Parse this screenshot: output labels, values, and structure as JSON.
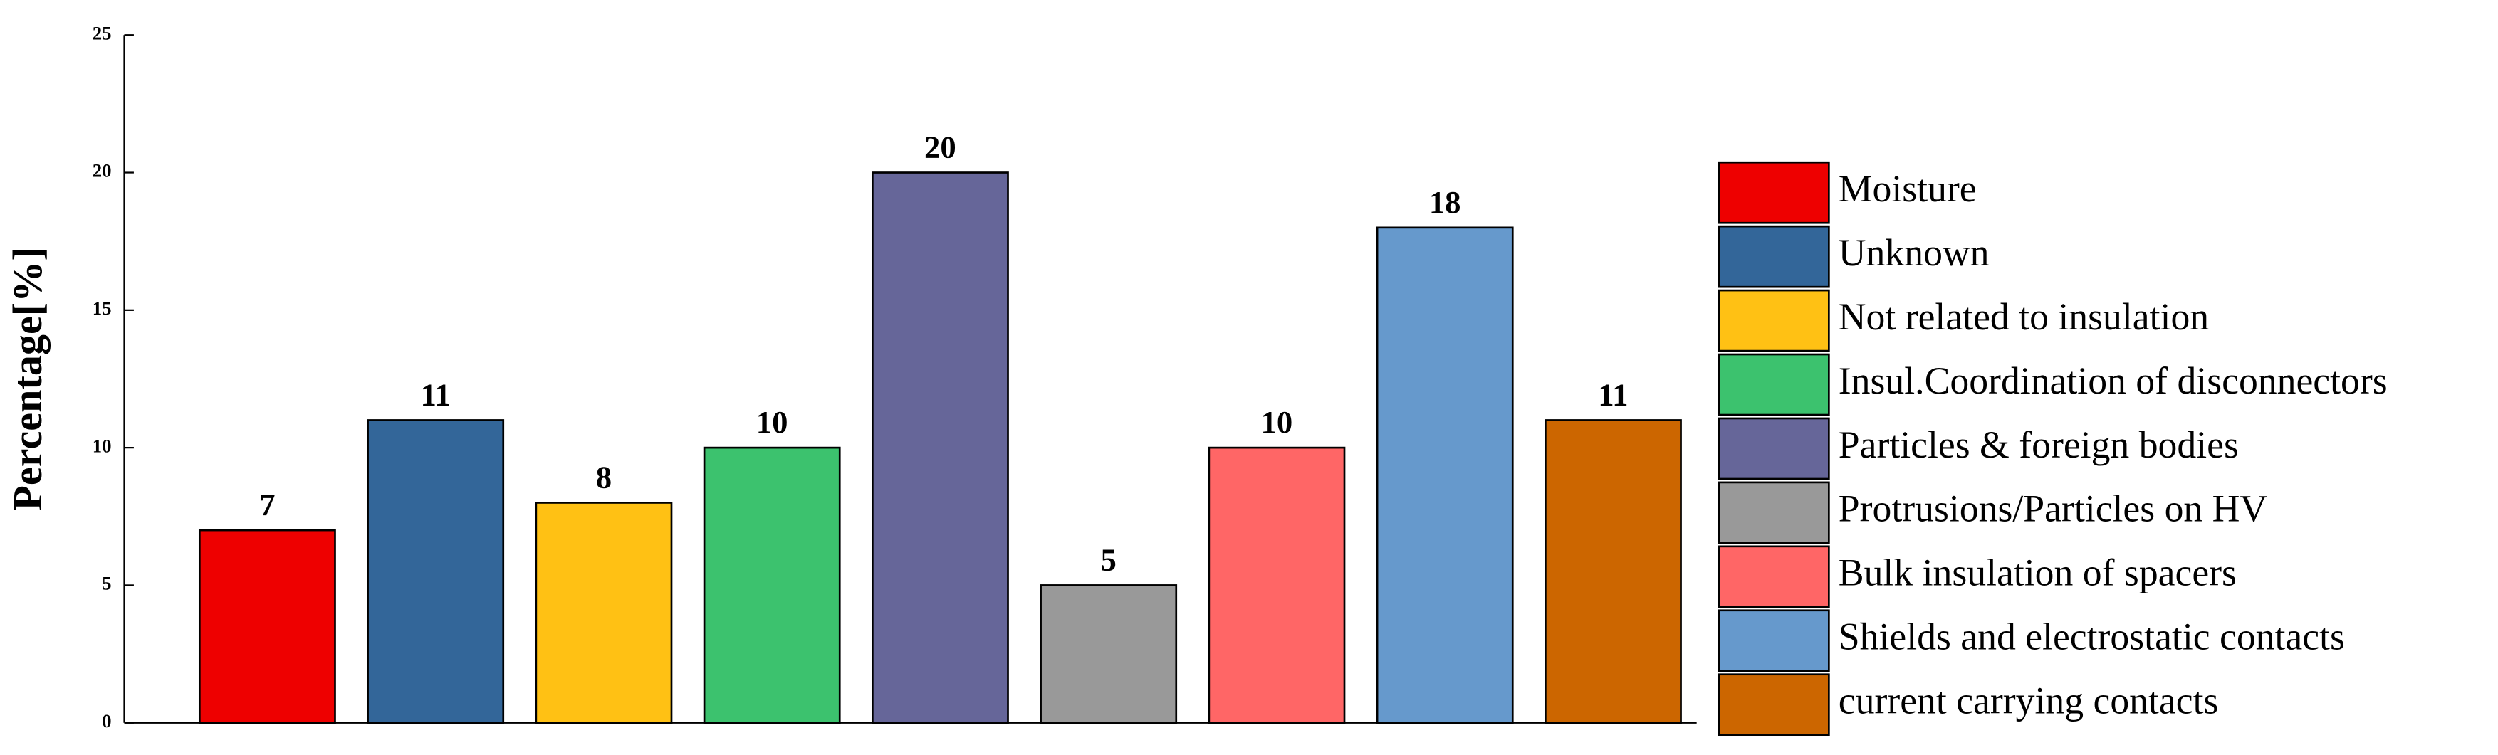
{
  "chart_data": {
    "type": "bar",
    "y_label": "Percentage[%]",
    "categories": [
      "Moisture",
      "Unknown",
      "Not related to insulation",
      "Insul.Coordination of disconnectors",
      "Particles & foreign bodies",
      "Protrusions/Particles on HV",
      "Bulk insulation of spacers",
      "Shields and electrostatic contacts",
      "current carrying contacts"
    ],
    "values": [
      7,
      11,
      8,
      10,
      20,
      5,
      10,
      18,
      11
    ],
    "colors": [
      "#ee0000",
      "#336699",
      "#ffc114",
      "#3cc26e",
      "#666699",
      "#999999",
      "#ff6666",
      "#6699cc",
      "#cc6600"
    ],
    "ylim": [
      0,
      25
    ],
    "yticks": [
      0,
      5,
      10,
      15,
      20,
      25
    ],
    "grid": false,
    "legend": "right"
  }
}
